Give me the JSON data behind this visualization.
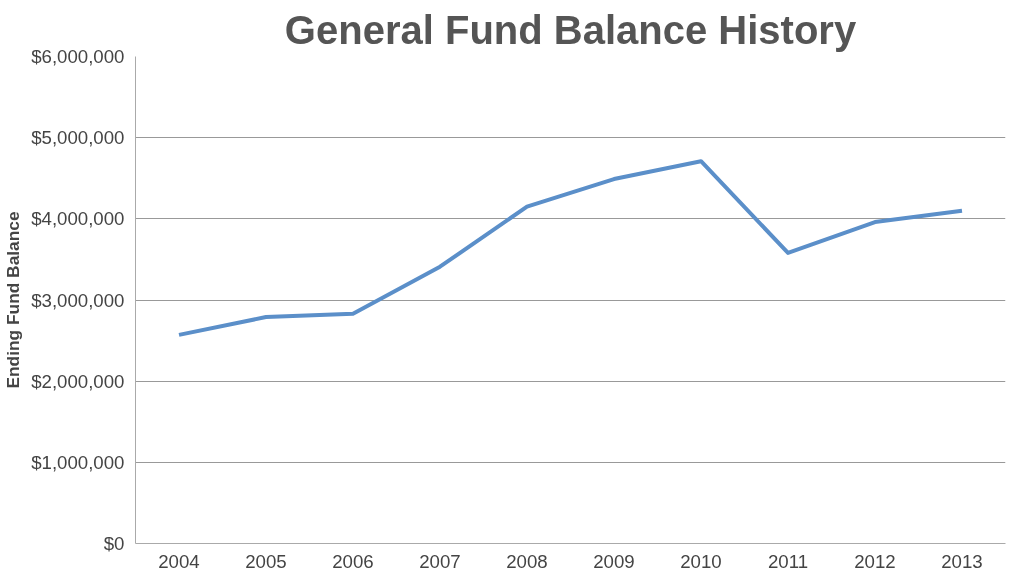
{
  "chart_data": {
    "type": "line",
    "title": "General Fund Balance History",
    "ylabel": "Ending Fund Balance",
    "categories": [
      "2004",
      "2005",
      "2006",
      "2007",
      "2008",
      "2009",
      "2010",
      "2011",
      "2012",
      "2013"
    ],
    "series": [
      {
        "color": "#5b8fc9",
        "values": [
          2570000,
          2790000,
          2830000,
          3410000,
          4150000,
          4490000,
          4710000,
          3580000,
          3960000,
          4100000
        ]
      }
    ],
    "ylim": [
      0,
      6000000
    ],
    "yticks": [
      {
        "value": 0,
        "label": "$0"
      },
      {
        "value": 1000000,
        "label": "$1,000,000"
      },
      {
        "value": 2000000,
        "label": "$2,000,000"
      },
      {
        "value": 3000000,
        "label": "$3,000,000"
      },
      {
        "value": 4000000,
        "label": "$4,000,000"
      },
      {
        "value": 5000000,
        "label": "$5,000,000"
      },
      {
        "value": 6000000,
        "label": "$6,000,000"
      }
    ],
    "grid": "y",
    "marker": "none",
    "line_style": "solid"
  }
}
